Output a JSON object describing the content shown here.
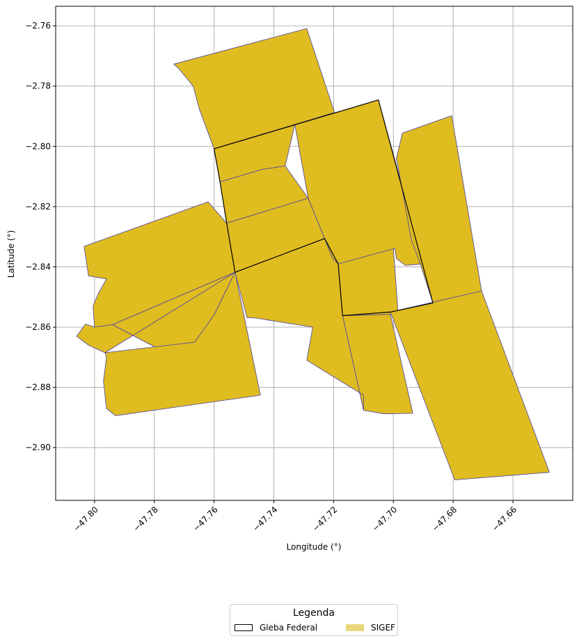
{
  "axes": {
    "xlabel": "Longitude (°)",
    "ylabel": "Latitude (°)",
    "xticks": [
      "−47.80",
      "−47.78",
      "−47.76",
      "−47.74",
      "−47.72",
      "−47.70",
      "−47.68",
      "−47.66"
    ],
    "yticks": [
      "−2.76",
      "−2.78",
      "−2.80",
      "−2.82",
      "−2.84",
      "−2.86",
      "−2.88",
      "−2.90"
    ]
  },
  "legend": {
    "title": "Legenda",
    "items": [
      {
        "label": "Gleba Federal"
      },
      {
        "label": "SIGEF"
      }
    ]
  },
  "colors": {
    "sigef_fill": "#dfbc1f",
    "sigef_edge": "#4b3fa8",
    "gleba_edge": "#000000",
    "grid": "#b0b0b0",
    "legend_sigef_swatch": "#e8d67a"
  },
  "chart_data": {
    "type": "map",
    "xlim": [
      -47.813,
      -47.64
    ],
    "ylim": [
      -2.9175,
      -2.7535
    ],
    "grid": true,
    "legend_placement": "bottom-center, below plot",
    "layers": [
      {
        "name": "SIGEF",
        "polygons": [
          [
            [
              -47.7735,
              -2.7727
            ],
            [
              -47.729,
              -2.7609
            ],
            [
              -47.7197,
              -2.7888
            ],
            [
              -47.76,
              -2.8008
            ],
            [
              -47.765,
              -2.7875
            ],
            [
              -47.767,
              -2.78
            ],
            [
              -47.772,
              -2.774
            ]
          ],
          [
            [
              -47.76,
              -2.8008
            ],
            [
              -47.7197,
              -2.7888
            ],
            [
              -47.733,
              -2.7928
            ],
            [
              -47.7362,
              -2.8065
            ],
            [
              -47.744,
              -2.8077
            ],
            [
              -47.758,
              -2.8118
            ]
          ],
          [
            [
              -47.758,
              -2.8118
            ],
            [
              -47.744,
              -2.8077
            ],
            [
              -47.7362,
              -2.8065
            ],
            [
              -47.7285,
              -2.8172
            ],
            [
              -47.7558,
              -2.8255
            ]
          ],
          [
            [
              -47.7558,
              -2.8255
            ],
            [
              -47.7285,
              -2.8172
            ],
            [
              -47.723,
              -2.8306
            ],
            [
              -47.753,
              -2.8418
            ]
          ],
          [
            [
              -47.733,
              -2.7928
            ],
            [
              -47.705,
              -2.7846
            ],
            [
              -47.69,
              -2.839
            ],
            [
              -47.696,
              -2.8395
            ],
            [
              -47.699,
              -2.8372
            ],
            [
              -47.6995,
              -2.834
            ],
            [
              -47.7185,
              -2.839
            ],
            [
              -47.7205,
              -2.837
            ],
            [
              -47.723,
              -2.8306
            ],
            [
              -47.7285,
              -2.8172
            ]
          ],
          [
            [
              -47.7185,
              -2.839
            ],
            [
              -47.7,
              -2.834
            ],
            [
              -47.6985,
              -2.8545
            ],
            [
              -47.701,
              -2.8558
            ],
            [
              -47.717,
              -2.8562
            ]
          ],
          [
            [
              -47.717,
              -2.8562
            ],
            [
              -47.701,
              -2.8558
            ],
            [
              -47.6935,
              -2.8886
            ],
            [
              -47.703,
              -2.8888
            ],
            [
              -47.71,
              -2.8876
            ]
          ],
          [
            [
              -47.753,
              -2.8418
            ],
            [
              -47.723,
              -2.8306
            ],
            [
              -47.7205,
              -2.837
            ],
            [
              -47.7185,
              -2.839
            ],
            [
              -47.717,
              -2.8562
            ],
            [
              -47.71,
              -2.8876
            ],
            [
              -47.71,
              -2.8826
            ],
            [
              -47.729,
              -2.871
            ],
            [
              -47.727,
              -2.86
            ],
            [
              -47.746,
              -2.857
            ],
            [
              -47.749,
              -2.8568
            ]
          ],
          [
            [
              -47.697,
              -2.7956
            ],
            [
              -47.6805,
              -2.7898
            ],
            [
              -47.6705,
              -2.848
            ],
            [
              -47.6868,
              -2.852
            ],
            [
              -47.691,
              -2.839
            ],
            [
              -47.694,
              -2.831
            ],
            [
              -47.696,
              -2.82
            ],
            [
              -47.699,
              -2.804
            ]
          ],
          [
            [
              -47.701,
              -2.855
            ],
            [
              -47.6705,
              -2.848
            ],
            [
              -47.6478,
              -2.9082
            ],
            [
              -47.6795,
              -2.9107
            ]
          ],
          [
            [
              -47.762,
              -2.8184
            ],
            [
              -47.7558,
              -2.8255
            ],
            [
              -47.753,
              -2.8418
            ],
            [
              -47.794,
              -2.8592
            ],
            [
              -47.8,
              -2.86
            ],
            [
              -47.8005,
              -2.853
            ],
            [
              -47.7988,
              -2.849
            ],
            [
              -47.796,
              -2.844
            ],
            [
              -47.802,
              -2.843
            ],
            [
              -47.8035,
              -2.8332
            ]
          ],
          [
            [
              -47.753,
              -2.8418
            ],
            [
              -47.779,
              -2.867
            ],
            [
              -47.794,
              -2.8592
            ]
          ],
          [
            [
              -47.753,
              -2.8418
            ],
            [
              -47.76,
              -2.856
            ],
            [
              -47.7665,
              -2.865
            ],
            [
              -47.779,
              -2.867
            ],
            [
              -47.794,
              -2.8592
            ],
            [
              -47.8,
              -2.86
            ],
            [
              -47.803,
              -2.859
            ],
            [
              -47.806,
              -2.863
            ],
            [
              -47.802,
              -2.866
            ],
            [
              -47.7965,
              -2.8685
            ]
          ],
          [
            [
              -47.753,
              -2.8418
            ],
            [
              -47.7445,
              -2.8826
            ],
            [
              -47.793,
              -2.8894
            ],
            [
              -47.796,
              -2.887
            ],
            [
              -47.797,
              -2.878
            ],
            [
              -47.796,
              -2.87
            ],
            [
              -47.7965,
              -2.8685
            ],
            [
              -47.7665,
              -2.865
            ],
            [
              -47.76,
              -2.856
            ]
          ]
        ]
      },
      {
        "name": "Gleba Federal",
        "polygons": [
          [
            [
              -47.76,
              -2.8008
            ],
            [
              -47.705,
              -2.7846
            ],
            [
              -47.6868,
              -2.852
            ],
            [
              -47.701,
              -2.855
            ],
            [
              -47.717,
              -2.8562
            ],
            [
              -47.7185,
              -2.839
            ],
            [
              -47.723,
              -2.8306
            ],
            [
              -47.753,
              -2.8418
            ],
            [
              -47.7558,
              -2.8255
            ],
            [
              -47.758,
              -2.8118
            ]
          ]
        ]
      }
    ]
  }
}
